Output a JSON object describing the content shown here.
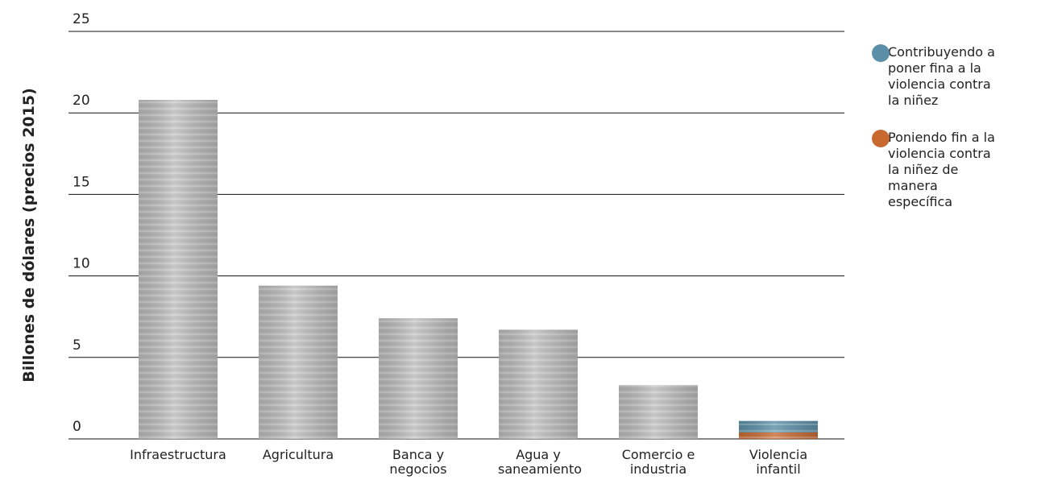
{
  "chart_data": {
    "type": "bar",
    "stacked": true,
    "y_label": "Billones de dólares (precios 2015)",
    "categories": [
      "Infraestructura",
      "Agricultura",
      "Banca y negocios",
      "Agua y saneamiento",
      "Comercio e industria",
      "Violencia infantil"
    ],
    "series": [
      {
        "color": "#bcbcbc",
        "values": [
          20.8,
          9.4,
          7.4,
          6.7,
          3.3,
          null
        ]
      },
      {
        "name": "Poniendo fin a la violencia contra la niñez de manera específica",
        "color": "#c8692f",
        "values": [
          null,
          null,
          null,
          null,
          null,
          0.4
        ]
      },
      {
        "name": "Contribuyendo a poner fina a la violencia contra la niñez",
        "color": "#5b8fa8",
        "values": [
          null,
          null,
          null,
          null,
          null,
          0.7
        ]
      }
    ],
    "ylim": [
      0,
      25
    ],
    "yticks": [
      0,
      5,
      10,
      15,
      20,
      25
    ],
    "grid": true
  }
}
